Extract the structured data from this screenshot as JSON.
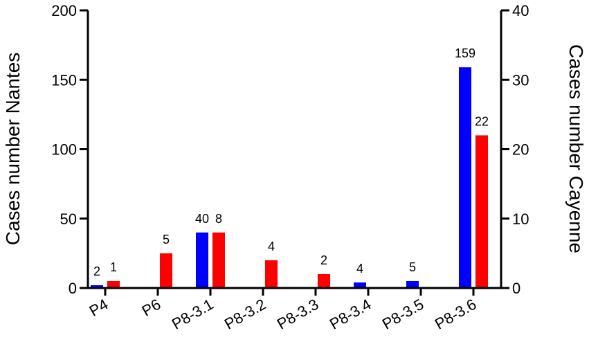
{
  "chart_data": {
    "type": "bar",
    "categories": [
      "P4",
      "P6",
      "P8-3.1",
      "P8-3.2",
      "P8-3.3",
      "P8-3.4",
      "P8-3.5",
      "P8-3.6"
    ],
    "series": [
      {
        "axis": "left",
        "color": "#0000ff",
        "values": [
          2,
          0,
          40,
          0,
          0,
          4,
          5,
          159
        ],
        "data_labels": [
          "2",
          "",
          "40",
          "",
          "",
          "4",
          "5",
          "159"
        ]
      },
      {
        "axis": "right",
        "color": "#ff0000",
        "values": [
          1,
          5,
          8,
          4,
          2,
          0,
          0,
          22
        ],
        "data_labels": [
          "1",
          "5",
          "8",
          "4",
          "2",
          "",
          "",
          "22"
        ]
      }
    ],
    "ylabel": "Cases number Nantes",
    "ylabel_right": "Cases number Cayenne",
    "ylim": [
      0,
      200
    ],
    "ylim_right": [
      0,
      40
    ],
    "yticks": [
      "0",
      "50",
      "100",
      "150",
      "200"
    ],
    "yticks_right": [
      "0",
      "10",
      "20",
      "30",
      "40"
    ],
    "grid": false,
    "legend": "none"
  }
}
